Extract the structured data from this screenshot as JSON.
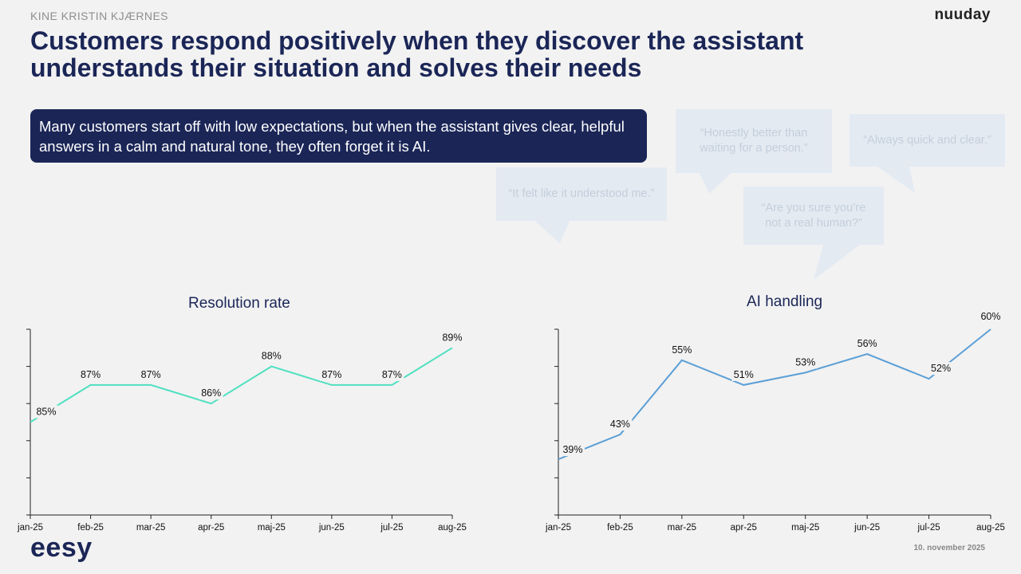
{
  "header": {
    "author": "KINE KRISTIN KJÆRNES",
    "brand": "nuuday",
    "title": "Customers respond positively when they discover the assistant understands their situation and solves their needs"
  },
  "banner": {
    "text": "Many customers start off with low expectations, but when the assistant gives clear, helpful answers in a calm and natural tone, they often forget it is AI."
  },
  "quotes": [
    "“Honestly better than waiting for a person.”",
    "“Always quick and clear.”",
    "“It felt like it understood me.”",
    "“Are you sure you’re not a real human?”"
  ],
  "footer": {
    "brand": "eesy",
    "date": "10. november 2025"
  },
  "colors": {
    "navy": "#1b2657",
    "resolution_line": "#4fe0c0",
    "ai_line": "#5b9fd6",
    "bubble": "#e4eaf2"
  },
  "chart_data": [
    {
      "type": "line",
      "title": "Resolution rate",
      "categories": [
        "jan-25",
        "feb-25",
        "mar-25",
        "apr-25",
        "maj-25",
        "jun-25",
        "jul-25",
        "aug-25"
      ],
      "values": [
        85,
        87,
        87,
        86,
        88,
        87,
        87,
        89
      ],
      "labels": [
        "85%",
        "87%",
        "87%",
        "86%",
        "88%",
        "87%",
        "87%",
        "89%"
      ],
      "ylim": [
        80,
        90
      ],
      "grid": false
    },
    {
      "type": "line",
      "title": "AI handling",
      "categories": [
        "jan-25",
        "feb-25",
        "mar-25",
        "apr-25",
        "maj-25",
        "jun-25",
        "jul-25",
        "aug-25"
      ],
      "values": [
        39,
        43,
        55,
        51,
        53,
        56,
        52,
        60
      ],
      "labels": [
        "39%",
        "43%",
        "55%",
        "51%",
        "53%",
        "56%",
        "52%",
        "60%"
      ],
      "ylim": [
        30,
        60
      ],
      "grid": false
    }
  ]
}
